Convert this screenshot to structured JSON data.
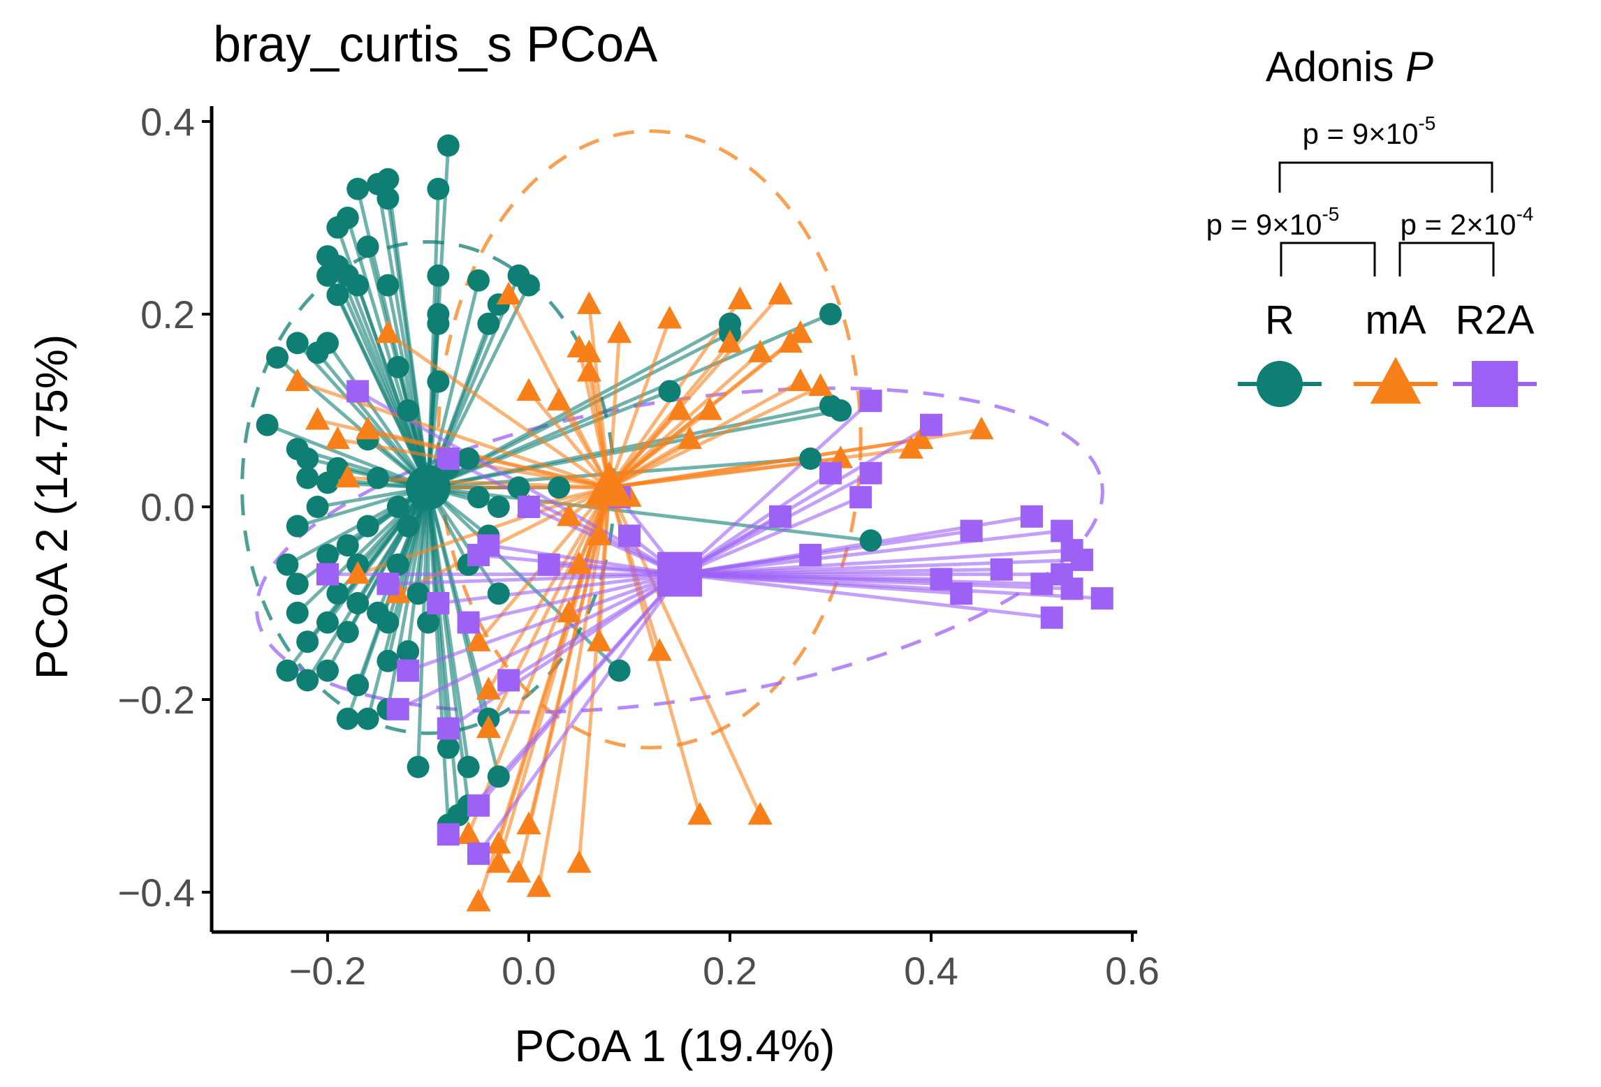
{
  "chart_data": {
    "type": "scatter",
    "title": "bray_curtis_s PCoA",
    "xlabel": "PCoA 1 (19.4%)",
    "ylabel": "PCoA 2 (14.75%)",
    "xlim": [
      -0.315,
      0.605
    ],
    "ylim": [
      -0.445,
      0.415
    ],
    "xticks": [
      -0.2,
      0.0,
      0.2,
      0.4,
      0.6
    ],
    "yticks": [
      -0.4,
      -0.2,
      0.0,
      0.2,
      0.4
    ],
    "xtick_labels": [
      "−0.2",
      "0.0",
      "0.2",
      "0.4",
      "0.6"
    ],
    "ytick_labels": [
      "−0.4",
      "−0.2",
      "0.0",
      "0.2",
      "0.4"
    ],
    "grid": false,
    "legend": {
      "title_main": "Adonis ",
      "title_italic": "P",
      "placement": "right"
    },
    "comparisons": [
      {
        "groups": [
          "R",
          "R2A"
        ],
        "base": "p = 9×10",
        "exponent": "-5"
      },
      {
        "groups": [
          "R",
          "mA"
        ],
        "base": "p = 9×10",
        "exponent": "-5"
      },
      {
        "groups": [
          "mA",
          "R2A"
        ],
        "base": "p = 2×10",
        "exponent": "-4"
      }
    ],
    "series": [
      {
        "name": "R",
        "shape": "circle",
        "color": "#0f7f74",
        "centroid": [
          -0.1,
          0.02
        ],
        "ellipse": {
          "center": [
            -0.1,
            0.02
          ],
          "rx": 0.185,
          "ry": 0.255,
          "angle": 0
        },
        "points": [
          [
            -0.08,
            0.375
          ],
          [
            -0.09,
            0.33
          ],
          [
            -0.14,
            0.34
          ],
          [
            -0.15,
            0.335
          ],
          [
            -0.14,
            0.32
          ],
          [
            -0.17,
            0.33
          ],
          [
            -0.19,
            0.29
          ],
          [
            -0.18,
            0.3
          ],
          [
            -0.2,
            0.26
          ],
          [
            -0.19,
            0.25
          ],
          [
            -0.2,
            0.24
          ],
          [
            -0.18,
            0.24
          ],
          [
            -0.17,
            0.23
          ],
          [
            -0.19,
            0.22
          ],
          [
            -0.16,
            0.27
          ],
          [
            -0.14,
            0.23
          ],
          [
            -0.09,
            0.24
          ],
          [
            -0.09,
            0.2
          ],
          [
            -0.09,
            0.19
          ],
          [
            -0.05,
            0.235
          ],
          [
            -0.01,
            0.24
          ],
          [
            0.0,
            0.23
          ],
          [
            -0.03,
            0.21
          ],
          [
            -0.04,
            0.19
          ],
          [
            -0.25,
            0.155
          ],
          [
            -0.23,
            0.17
          ],
          [
            -0.21,
            0.16
          ],
          [
            -0.2,
            0.17
          ],
          [
            -0.13,
            0.145
          ],
          [
            -0.09,
            0.13
          ],
          [
            -0.26,
            0.085
          ],
          [
            -0.23,
            0.06
          ],
          [
            -0.22,
            0.05
          ],
          [
            -0.22,
            0.03
          ],
          [
            -0.2,
            0.025
          ],
          [
            -0.19,
            0.04
          ],
          [
            -0.21,
            0.0
          ],
          [
            -0.23,
            -0.02
          ],
          [
            -0.2,
            -0.05
          ],
          [
            -0.18,
            -0.04
          ],
          [
            -0.17,
            -0.06
          ],
          [
            -0.24,
            -0.06
          ],
          [
            -0.23,
            -0.08
          ],
          [
            -0.19,
            -0.09
          ],
          [
            -0.17,
            -0.1
          ],
          [
            -0.15,
            -0.11
          ],
          [
            -0.13,
            -0.06
          ],
          [
            -0.12,
            -0.02
          ],
          [
            -0.23,
            -0.11
          ],
          [
            -0.22,
            -0.14
          ],
          [
            -0.2,
            -0.12
          ],
          [
            -0.18,
            -0.13
          ],
          [
            -0.14,
            -0.12
          ],
          [
            -0.12,
            -0.15
          ],
          [
            -0.24,
            -0.17
          ],
          [
            -0.22,
            -0.18
          ],
          [
            -0.2,
            -0.17
          ],
          [
            -0.17,
            -0.185
          ],
          [
            -0.14,
            -0.16
          ],
          [
            -0.1,
            -0.12
          ],
          [
            -0.18,
            -0.22
          ],
          [
            -0.16,
            -0.22
          ],
          [
            -0.14,
            -0.21
          ],
          [
            -0.11,
            -0.27
          ],
          [
            -0.08,
            -0.25
          ],
          [
            -0.06,
            -0.27
          ],
          [
            -0.07,
            -0.32
          ],
          [
            -0.06,
            -0.31
          ],
          [
            -0.08,
            -0.33
          ],
          [
            -0.03,
            -0.28
          ],
          [
            -0.04,
            -0.22
          ],
          [
            -0.06,
            -0.06
          ],
          [
            -0.03,
            -0.09
          ],
          [
            -0.04,
            -0.03
          ],
          [
            -0.03,
            0.0
          ],
          [
            -0.01,
            0.02
          ],
          [
            0.03,
            0.02
          ],
          [
            0.09,
            -0.17
          ],
          [
            0.14,
            0.12
          ],
          [
            0.2,
            0.18
          ],
          [
            0.2,
            0.19
          ],
          [
            0.3,
            0.2
          ],
          [
            0.28,
            0.05
          ],
          [
            0.31,
            0.1
          ],
          [
            0.3,
            0.105
          ],
          [
            0.34,
            -0.035
          ],
          [
            -0.12,
            0.1
          ],
          [
            -0.16,
            0.07
          ],
          [
            -0.15,
            0.03
          ],
          [
            -0.13,
            0.0
          ],
          [
            -0.06,
            0.05
          ],
          [
            -0.05,
            0.01
          ],
          [
            -0.08,
            0.04
          ],
          [
            -0.16,
            -0.02
          ],
          [
            -0.11,
            -0.09
          ]
        ]
      },
      {
        "name": "mA",
        "shape": "triangle",
        "color": "#f8801a",
        "centroid": [
          0.08,
          0.02
        ],
        "ellipse": {
          "center": [
            0.12,
            0.07
          ],
          "rx": 0.21,
          "ry": 0.32,
          "angle": 0
        },
        "points": [
          [
            -0.02,
            0.22
          ],
          [
            0.06,
            0.21
          ],
          [
            0.09,
            0.18
          ],
          [
            0.14,
            0.195
          ],
          [
            0.21,
            0.215
          ],
          [
            0.25,
            0.22
          ],
          [
            0.26,
            0.17
          ],
          [
            0.27,
            0.18
          ],
          [
            0.23,
            0.16
          ],
          [
            0.2,
            0.17
          ],
          [
            0.05,
            0.165
          ],
          [
            0.06,
            0.16
          ],
          [
            0.06,
            0.14
          ],
          [
            0.03,
            0.11
          ],
          [
            0.0,
            0.12
          ],
          [
            0.27,
            0.13
          ],
          [
            0.29,
            0.125
          ],
          [
            0.15,
            0.1
          ],
          [
            0.18,
            0.1
          ],
          [
            0.16,
            0.07
          ],
          [
            0.38,
            0.06
          ],
          [
            0.45,
            0.08
          ],
          [
            0.39,
            0.07
          ],
          [
            -0.14,
            0.18
          ],
          [
            -0.23,
            0.13
          ],
          [
            -0.21,
            0.09
          ],
          [
            -0.19,
            0.07
          ],
          [
            -0.16,
            0.08
          ],
          [
            -0.18,
            0.03
          ],
          [
            -0.1,
            0.02
          ],
          [
            0.0,
            0.0
          ],
          [
            0.04,
            -0.01
          ],
          [
            0.07,
            -0.03
          ],
          [
            0.05,
            -0.06
          ],
          [
            0.13,
            -0.15
          ],
          [
            0.07,
            -0.14
          ],
          [
            0.04,
            -0.11
          ],
          [
            -0.05,
            -0.14
          ],
          [
            -0.04,
            -0.19
          ],
          [
            -0.04,
            -0.23
          ],
          [
            0.17,
            -0.32
          ],
          [
            0.23,
            -0.32
          ],
          [
            0.05,
            -0.37
          ],
          [
            0.0,
            -0.33
          ],
          [
            -0.03,
            -0.37
          ],
          [
            -0.01,
            -0.38
          ],
          [
            0.01,
            -0.395
          ],
          [
            -0.05,
            -0.41
          ],
          [
            -0.06,
            -0.34
          ],
          [
            -0.03,
            -0.35
          ],
          [
            -0.17,
            -0.07
          ],
          [
            -0.13,
            -0.09
          ],
          [
            0.1,
            0.01
          ],
          [
            0.31,
            0.05
          ]
        ]
      },
      {
        "name": "R2A",
        "shape": "square",
        "color": "#9d61f6",
        "centroid": [
          0.15,
          -0.07
        ],
        "ellipse": {
          "center": [
            0.15,
            -0.045
          ],
          "rx": 0.425,
          "ry": 0.155,
          "angle": -9
        },
        "points": [
          [
            0.34,
            0.11
          ],
          [
            0.4,
            0.085
          ],
          [
            0.34,
            0.035
          ],
          [
            0.33,
            0.01
          ],
          [
            0.3,
            0.035
          ],
          [
            0.25,
            -0.01
          ],
          [
            0.28,
            -0.05
          ],
          [
            0.44,
            -0.025
          ],
          [
            0.5,
            -0.01
          ],
          [
            0.53,
            -0.025
          ],
          [
            0.54,
            -0.045
          ],
          [
            0.55,
            -0.055
          ],
          [
            0.53,
            -0.07
          ],
          [
            0.47,
            -0.065
          ],
          [
            0.54,
            -0.085
          ],
          [
            0.51,
            -0.08
          ],
          [
            0.41,
            -0.075
          ],
          [
            0.43,
            -0.09
          ],
          [
            0.57,
            -0.095
          ],
          [
            0.52,
            -0.115
          ],
          [
            0.09,
            0.01
          ],
          [
            0.0,
            0.0
          ],
          [
            0.02,
            -0.06
          ],
          [
            -0.05,
            -0.05
          ],
          [
            -0.08,
            0.05
          ],
          [
            -0.17,
            0.12
          ],
          [
            -0.2,
            -0.07
          ],
          [
            -0.14,
            -0.08
          ],
          [
            -0.09,
            -0.1
          ],
          [
            -0.06,
            -0.12
          ],
          [
            -0.02,
            -0.18
          ],
          [
            -0.13,
            -0.21
          ],
          [
            -0.08,
            -0.23
          ],
          [
            -0.05,
            -0.31
          ],
          [
            -0.08,
            -0.34
          ],
          [
            -0.05,
            -0.36
          ],
          [
            -0.12,
            -0.17
          ],
          [
            -0.04,
            -0.04
          ],
          [
            0.1,
            -0.03
          ]
        ]
      }
    ]
  }
}
